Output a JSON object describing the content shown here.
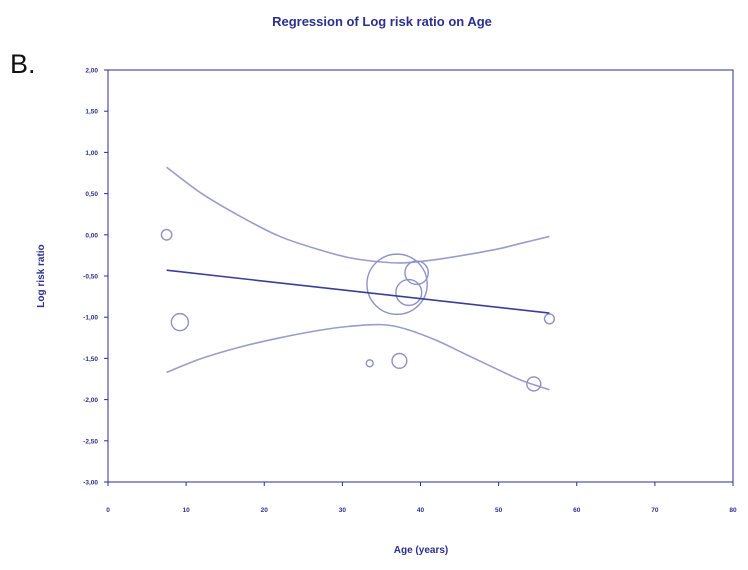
{
  "panel_label": "B.",
  "colors": {
    "axis": "#2b2f8f",
    "text": "#2b2f8f",
    "regression_line": "#3a3f95",
    "ci_curve": "#9a9ccc",
    "bubble": "#8f92c7"
  },
  "chart_data": {
    "type": "scatter",
    "title": "Regression of Log risk ratio on Age",
    "xlabel": "Age (years)",
    "ylabel": "Log risk ratio",
    "xlim": [
      0,
      80
    ],
    "ylim": [
      -3.0,
      2.0
    ],
    "x_ticks": [
      0,
      10,
      20,
      30,
      40,
      50,
      60,
      70,
      80
    ],
    "x_tick_labels": [
      "0",
      "10",
      "20",
      "30",
      "40",
      "50",
      "60",
      "70",
      "80"
    ],
    "y_ticks": [
      2.0,
      1.5,
      1.0,
      0.5,
      0.0,
      -0.5,
      -1.0,
      -1.5,
      -2.0,
      -2.5,
      -3.0
    ],
    "y_tick_labels": [
      "2,00",
      "1,50",
      "1,00",
      "0,50",
      "0,00",
      "-0,50",
      "-1,00",
      "-1,50",
      "-2,00",
      "-2,50",
      "-3,00"
    ],
    "grid": false,
    "points": [
      {
        "x": 7.5,
        "y": 0.0,
        "weight": 0.9
      },
      {
        "x": 9.2,
        "y": -1.06,
        "weight": 2.4
      },
      {
        "x": 33.5,
        "y": -1.56,
        "weight": 0.4
      },
      {
        "x": 37.0,
        "y": -0.6,
        "weight": 30.0
      },
      {
        "x": 37.3,
        "y": -1.53,
        "weight": 1.8
      },
      {
        "x": 38.5,
        "y": -0.7,
        "weight": 5.5
      },
      {
        "x": 39.5,
        "y": -0.46,
        "weight": 4.5
      },
      {
        "x": 54.5,
        "y": -1.81,
        "weight": 1.6
      },
      {
        "x": 56.5,
        "y": -1.02,
        "weight": 0.8
      }
    ],
    "regression_line": {
      "x": [
        7.5,
        56.5
      ],
      "y": [
        -0.43,
        -0.95
      ]
    },
    "ci_upper": {
      "x": [
        7.5,
        12,
        17,
        22,
        27,
        31,
        35,
        38,
        42,
        46,
        50,
        53,
        56.5
      ],
      "y": [
        0.82,
        0.5,
        0.22,
        -0.02,
        -0.18,
        -0.28,
        -0.33,
        -0.34,
        -0.3,
        -0.24,
        -0.17,
        -0.1,
        -0.02
      ]
    },
    "ci_lower": {
      "x": [
        7.5,
        12,
        17,
        22,
        27,
        31,
        35,
        38,
        42,
        46,
        50,
        53,
        56.5
      ],
      "y": [
        -1.67,
        -1.5,
        -1.36,
        -1.25,
        -1.16,
        -1.11,
        -1.09,
        -1.14,
        -1.28,
        -1.46,
        -1.64,
        -1.77,
        -1.88
      ]
    }
  }
}
